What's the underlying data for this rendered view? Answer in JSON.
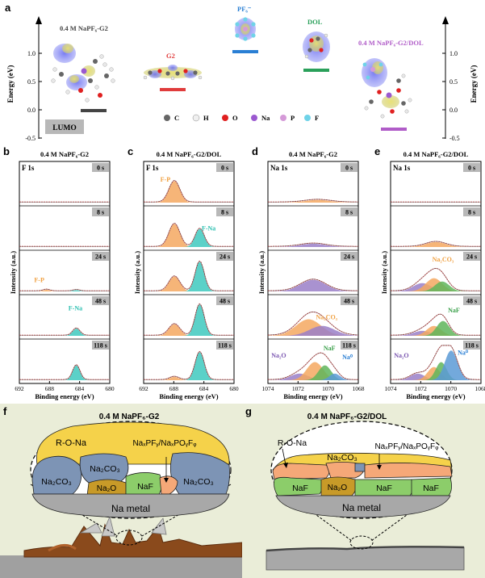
{
  "panel_letters": {
    "a": "a",
    "b": "b",
    "c": "c",
    "d": "d",
    "e": "e",
    "f": "f",
    "g": "g"
  },
  "panel_a": {
    "y_axis_label": "Energy (eV)",
    "y_axis_label_right": "Energy (eV)",
    "y_ticks": [
      "1.0",
      "0.5",
      "0.0",
      "-0.5"
    ],
    "lumo_label": "LUMO",
    "species": [
      {
        "label": "0.4 M NaPF₆-G2",
        "color": "#444444",
        "level": 0.0
      },
      {
        "label": "G2",
        "color": "#e03c3c",
        "level": 0.36
      },
      {
        "label": "PF₆⁻",
        "color": "#2a7fd4",
        "level": 1.05
      },
      {
        "label": "DOL",
        "color": "#2aa05a",
        "level": 0.72
      },
      {
        "label": "0.4 M NaPF₆-G2/DOL",
        "color": "#b05cc8",
        "level": -0.35
      }
    ],
    "atom_legend": [
      {
        "symbol": "C",
        "color": "#666666"
      },
      {
        "symbol": "H",
        "color": "#f0f0f0"
      },
      {
        "symbol": "O",
        "color": "#e02020"
      },
      {
        "symbol": "Na",
        "color": "#9b59d0"
      },
      {
        "symbol": "P",
        "color": "#d59ad8"
      },
      {
        "symbol": "F",
        "color": "#6fd3e8"
      }
    ]
  },
  "xps_panels": [
    {
      "letter": "b",
      "title": "0.4 M NaPF₆-G2",
      "region": "F 1s",
      "x_ticks": [
        "692",
        "688",
        "684",
        "680"
      ],
      "times": [
        "0 s",
        "8 s",
        "24 s",
        "48 s",
        "118 s"
      ],
      "annotations": [
        {
          "row": 2,
          "text": "F-P",
          "color": "#f0a040"
        },
        {
          "row": 3,
          "text": "F-Na",
          "color": "#2bbfb0"
        }
      ]
    },
    {
      "letter": "c",
      "title": "0.4 M NaPF₆-G2/DOL",
      "region": "F 1s",
      "x_ticks": [
        "692",
        "688",
        "684",
        "680"
      ],
      "times": [
        "0 s",
        "8 s",
        "24 s",
        "48 s",
        "118 s"
      ],
      "annotations": [
        {
          "row": 0,
          "text": "F-P",
          "color": "#f0a040"
        },
        {
          "row": 1,
          "text": "F-Na",
          "color": "#2bbfb0"
        }
      ]
    },
    {
      "letter": "d",
      "title": "0.4 M NaPF₆-G2",
      "region": "Na 1s",
      "x_ticks": [
        "1074",
        "1072",
        "1070",
        "1068"
      ],
      "times": [
        "0 s",
        "8 s",
        "24 s",
        "48 s",
        "118 s"
      ],
      "annotations": [
        {
          "row": 3,
          "text": "Na₂CO₃",
          "color": "#f0a040"
        },
        {
          "row": 4,
          "text": "Na₂O",
          "color": "#7a55b0"
        },
        {
          "row": 4,
          "text": "NaF",
          "color": "#3aa04a"
        },
        {
          "row": 4,
          "text": "Na⁰",
          "color": "#2a7fd4"
        }
      ]
    },
    {
      "letter": "e",
      "title": "0.4 M NaPF₆-G2/DOL",
      "region": "Na 1s",
      "x_ticks": [
        "1074",
        "1072",
        "1070",
        "1068"
      ],
      "times": [
        "0 s",
        "8 s",
        "24 s",
        "48 s",
        "118 s"
      ],
      "annotations": [
        {
          "row": 2,
          "text": "Na₂CO₃",
          "color": "#f0a040"
        },
        {
          "row": 3,
          "text": "NaF",
          "color": "#3aa04a"
        },
        {
          "row": 4,
          "text": "Na₂O",
          "color": "#7a55b0"
        },
        {
          "row": 4,
          "text": "Na⁰",
          "color": "#2a7fd4"
        }
      ]
    }
  ],
  "xps_axis": {
    "y_label": "Intensity (a.u.)",
    "x_label": "Binding energy (eV)"
  },
  "panel_f": {
    "title": "0.4 M NaPF₆-G2",
    "labels": {
      "rona": "R-O-Na",
      "napf": "NaₓPFᵧ/NaₓPOᵧFᵩ",
      "na2co3_a": "Na₂CO₃",
      "na2co3_b": "Na₂CO₃",
      "na2co3_c": "Na₂CO₃",
      "na2o": "Na₂O",
      "naf": "NaF",
      "metal": "Na metal"
    }
  },
  "panel_g": {
    "title": "0.4 M NaPF₆-G2/DOL",
    "labels": {
      "rona": "R-O-Na",
      "na2co3": "Na₂CO₃",
      "napf": "NaₓPFᵧ/NaₓPOᵧFᵩ",
      "naf_a": "NaF",
      "na2o": "Na₂O",
      "naf_b": "NaF",
      "naf_c": "NaF",
      "metal": "Na metal"
    }
  },
  "colors": {
    "orange": "#f5a860",
    "teal": "#3ec9be",
    "purple": "#9a7fc8",
    "green": "#5fb55a",
    "blue": "#5b9ad6",
    "fit": "#d83030",
    "gray_box": "#b8b8b8"
  }
}
